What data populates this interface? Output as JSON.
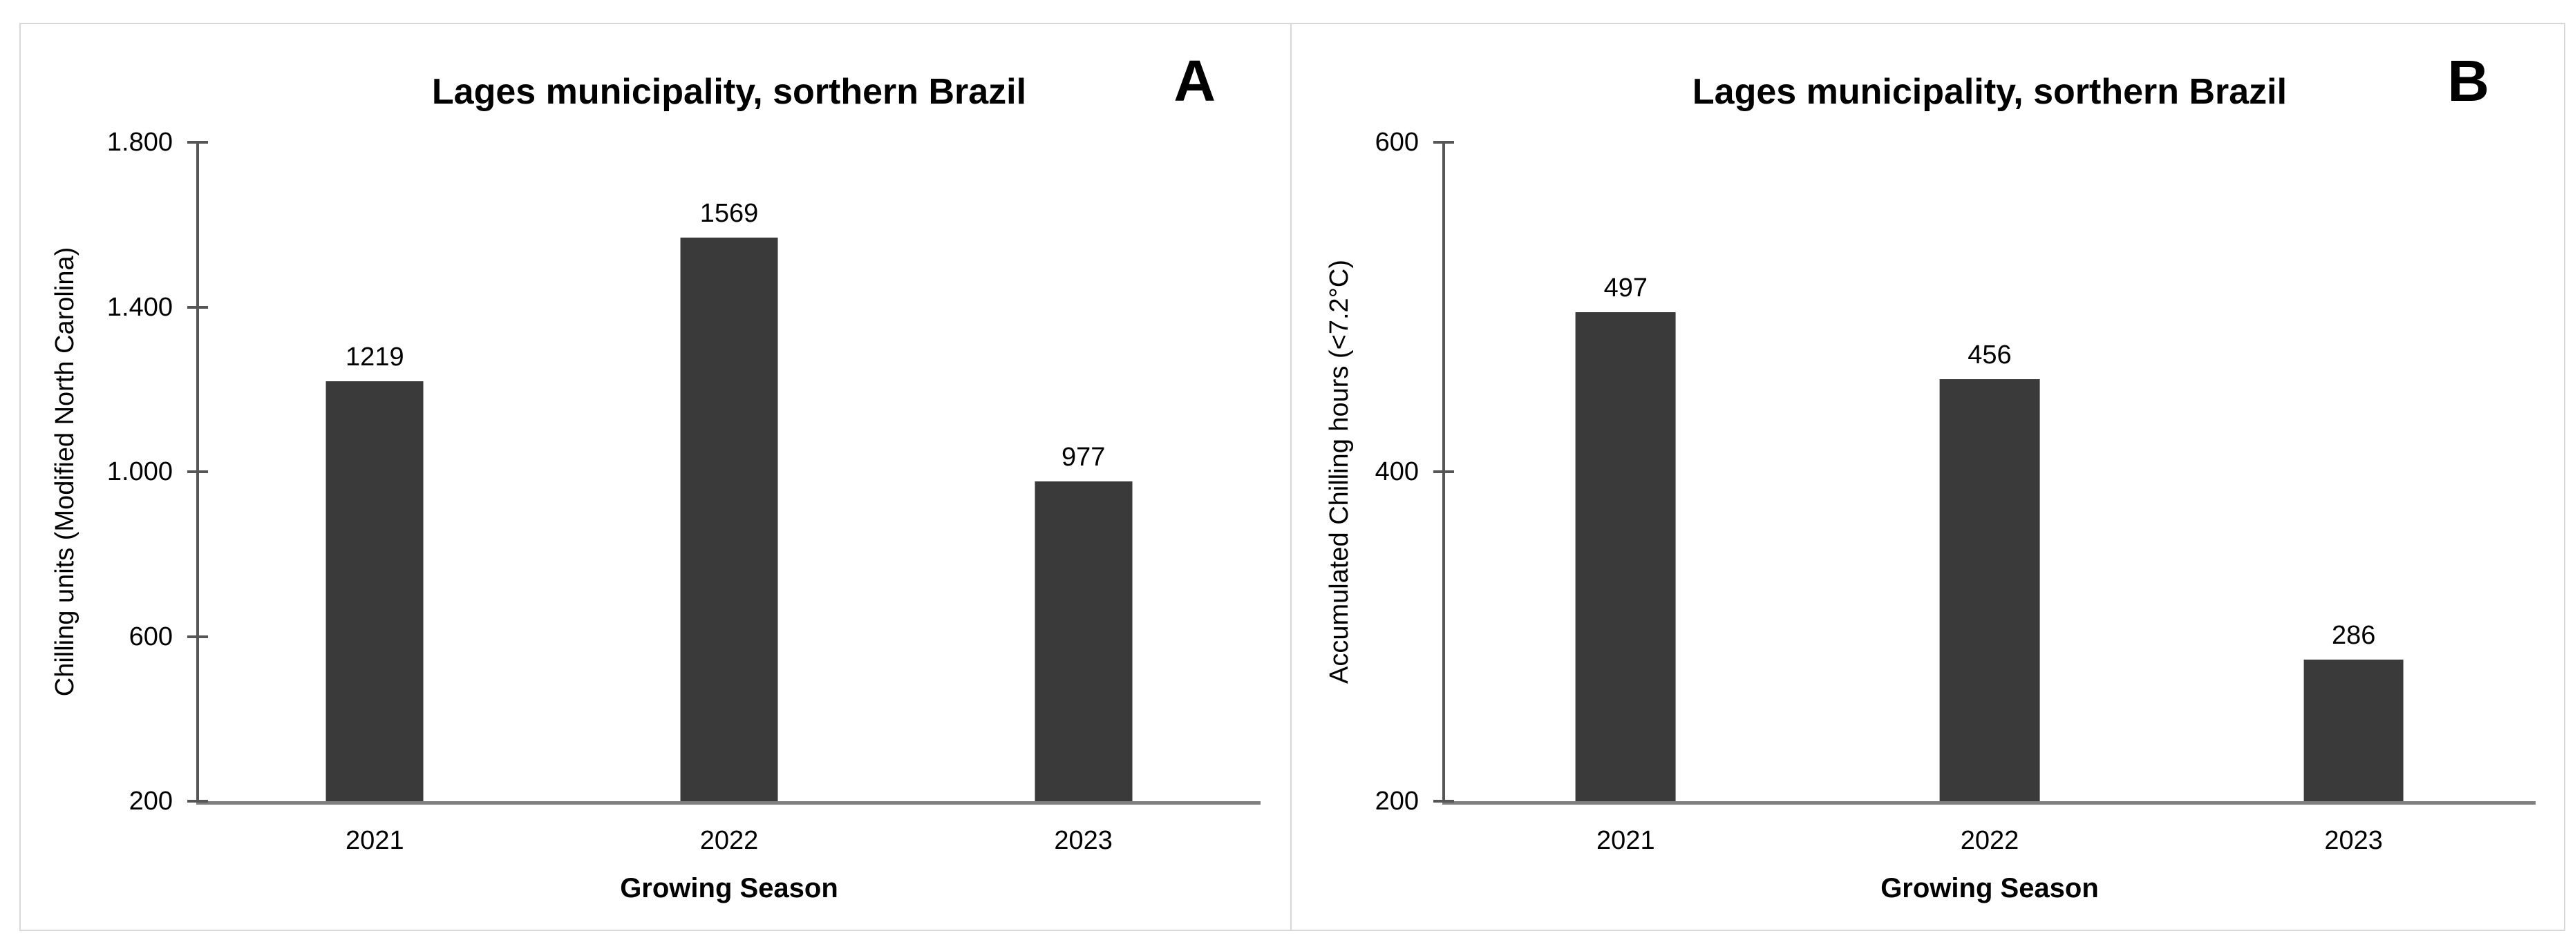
{
  "figure": {
    "background": "#ffffff",
    "border_color": "#d8d8d8"
  },
  "colors": {
    "bar": "#3a3a3a",
    "axis": "#565656",
    "baseline": "#7f7f7f",
    "text": "#000000"
  },
  "chart_data": [
    {
      "type": "bar",
      "panel_label": "A",
      "title": "Lages municipality, sorthern Brazil",
      "xlabel": "Growing Season",
      "ylabel": "Chilling units (Modified North Carolina)",
      "categories": [
        "2021",
        "2022",
        "2023"
      ],
      "values": [
        1219,
        1569,
        977
      ],
      "data_labels": [
        "1219",
        "1569",
        "977"
      ],
      "ylim": [
        200,
        1800
      ],
      "yticks": [
        {
          "value": 1800,
          "label": "1.800"
        },
        {
          "value": 1400,
          "label": "1.400"
        },
        {
          "value": 1000,
          "label": "1.000"
        },
        {
          "value": 600,
          "label": "600"
        },
        {
          "value": 200,
          "label": "200"
        }
      ],
      "grid": false,
      "legend": false
    },
    {
      "type": "bar",
      "panel_label": "B",
      "title": "Lages municipality, sorthern Brazil",
      "xlabel": "Growing Season",
      "ylabel": "Accumulated Chilling hours (<7.2°C)",
      "categories": [
        "2021",
        "2022",
        "2023"
      ],
      "values": [
        497,
        456,
        286
      ],
      "data_labels": [
        "497",
        "456",
        "286"
      ],
      "ylim": [
        200,
        600
      ],
      "yticks": [
        {
          "value": 600,
          "label": "600"
        },
        {
          "value": 400,
          "label": "400"
        },
        {
          "value": 200,
          "label": "200"
        }
      ],
      "grid": false,
      "legend": false
    }
  ]
}
